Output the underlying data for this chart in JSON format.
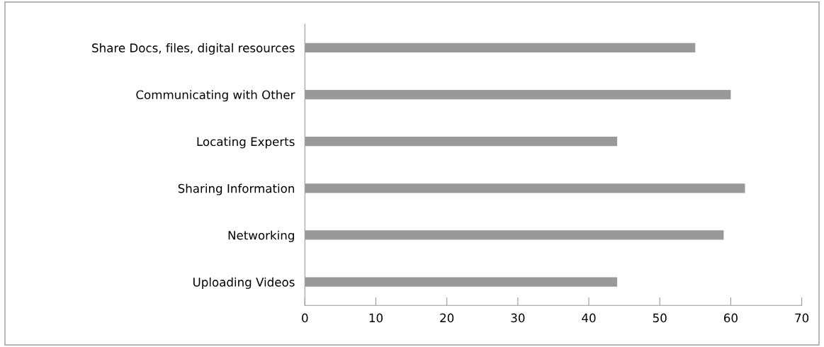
{
  "chart_data": {
    "type": "bar",
    "orientation": "horizontal",
    "categories": [
      "Share Docs, files, digital resources",
      "Communicating with Other",
      "Locating Experts",
      "Sharing Information",
      "Networking",
      "Uploading Videos"
    ],
    "values": [
      55,
      60,
      44,
      62,
      59,
      44
    ],
    "color": "#999999",
    "xlim": [
      0,
      70
    ],
    "xticks": [
      0,
      10,
      20,
      30,
      40,
      50,
      60,
      70
    ],
    "grid": false,
    "legend": false
  }
}
